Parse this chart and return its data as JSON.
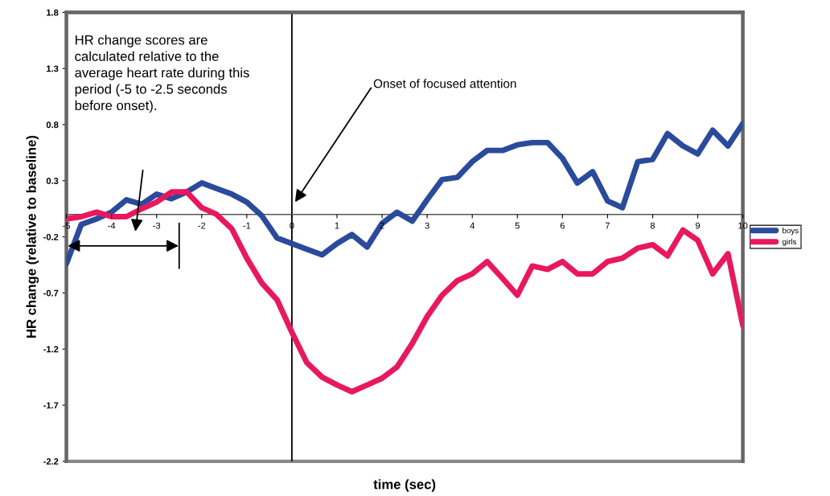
{
  "chart_data": {
    "type": "line",
    "xlabel": "time (sec)",
    "ylabel": "HR change (relative to baseline)",
    "x": [
      -5,
      -4.67,
      -4.33,
      -4,
      -3.67,
      -3.33,
      -3,
      -2.67,
      -2.33,
      -2,
      -1.67,
      -1.33,
      -1,
      -0.67,
      -0.33,
      0,
      0.33,
      0.67,
      1,
      1.33,
      1.67,
      2,
      2.33,
      2.67,
      3,
      3.33,
      3.67,
      4,
      4.33,
      4.67,
      5,
      5.33,
      5.67,
      6,
      6.33,
      6.67,
      7,
      7.33,
      7.67,
      8,
      8.33,
      8.67,
      9,
      9.33,
      9.67,
      10
    ],
    "series": [
      {
        "name": "boys",
        "color": "#2a4a9c",
        "values": [
          -0.44,
          -0.09,
          -0.04,
          0.02,
          0.13,
          0.09,
          0.18,
          0.14,
          0.2,
          0.28,
          0.23,
          0.18,
          0.11,
          -0.01,
          -0.21,
          -0.26,
          -0.31,
          -0.36,
          -0.26,
          -0.18,
          -0.29,
          -0.08,
          0.02,
          -0.06,
          0.13,
          0.31,
          0.33,
          0.47,
          0.57,
          0.57,
          0.62,
          0.64,
          0.64,
          0.5,
          0.28,
          0.38,
          0.12,
          0.06,
          0.47,
          0.49,
          0.72,
          0.61,
          0.54,
          0.75,
          0.61,
          0.81
        ]
      },
      {
        "name": "girls",
        "color": "#e8185f",
        "values": [
          -0.04,
          -0.02,
          0.02,
          -0.02,
          -0.02,
          0.05,
          0.11,
          0.2,
          0.2,
          0.06,
          0.0,
          -0.13,
          -0.39,
          -0.61,
          -0.76,
          -1.05,
          -1.32,
          -1.45,
          -1.52,
          -1.58,
          -1.52,
          -1.46,
          -1.36,
          -1.15,
          -0.91,
          -0.72,
          -0.59,
          -0.53,
          -0.42,
          -0.57,
          -0.72,
          -0.46,
          -0.49,
          -0.42,
          -0.53,
          -0.53,
          -0.42,
          -0.39,
          -0.3,
          -0.27,
          -0.37,
          -0.14,
          -0.23,
          -0.53,
          -0.35,
          -0.99
        ]
      }
    ],
    "xlim": [
      -5,
      10
    ],
    "xticks": [
      -5,
      -4,
      -3,
      -2,
      -1,
      0,
      1,
      2,
      3,
      4,
      5,
      6,
      7,
      8,
      9,
      10
    ],
    "ylim": [
      -2.2,
      1.8
    ],
    "yticks": [
      1.8,
      1.3,
      0.8,
      0.3,
      -0.2,
      -0.7,
      -1.2,
      -1.7,
      -2.2
    ],
    "ref_lines": [
      {
        "axis": "x",
        "value": 0,
        "color": "#000000"
      }
    ],
    "annotations": [
      "HR change scores are\ncalculated relative to the\naverage heart rate during this\nperiod (-5 to -2.5 seconds\nbefore onset).",
      {
        "text": "Onset of focused attention",
        "x": 0.07,
        "y": 0.11
      }
    ],
    "grid": false,
    "legend": "right",
    "marker": "none",
    "line_style": "solid"
  }
}
